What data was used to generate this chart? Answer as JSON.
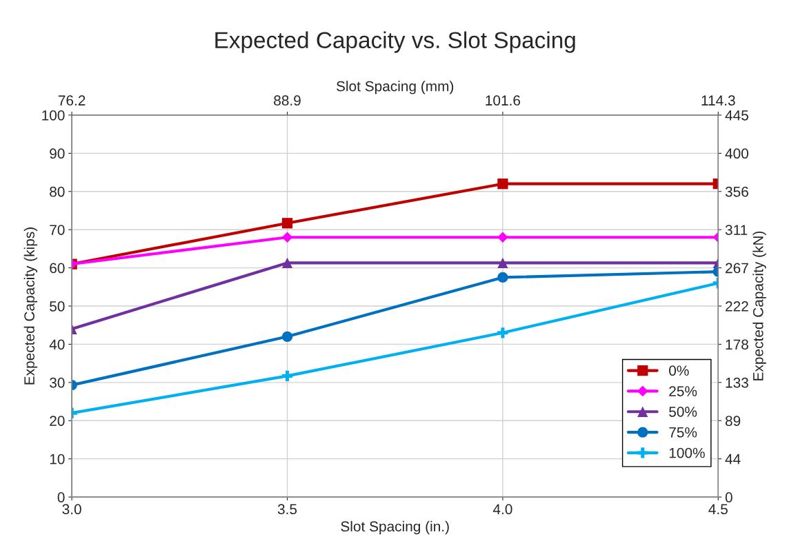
{
  "chart_data": {
    "type": "line",
    "title": "Expected Capacity vs. Slot Spacing",
    "xlabel": "Slot Spacing (in.)",
    "x2label": "Slot Spacing (mm)",
    "ylabel": "Expected Capacity (kips)",
    "y2label": "Expected Capacity (kN)",
    "x": [
      3.0,
      3.5,
      4.0,
      4.5
    ],
    "xlim": [
      3.0,
      4.5
    ],
    "xticks": [
      {
        "value": 3.0,
        "label": "3.0"
      },
      {
        "value": 3.5,
        "label": "3.5"
      },
      {
        "value": 4.0,
        "label": "4.0"
      },
      {
        "value": 4.5,
        "label": "4.5"
      }
    ],
    "x2lim": [
      76.2,
      114.3
    ],
    "x2ticks": [
      76.2,
      88.9,
      101.6,
      114.3
    ],
    "ylim": [
      0,
      100
    ],
    "yticks": [
      0,
      10,
      20,
      30,
      40,
      50,
      60,
      70,
      80,
      90,
      100
    ],
    "y2lim": [
      0,
      444.8
    ],
    "y2ticks": [
      0,
      {
        "value": 44.48,
        "label": "44"
      },
      {
        "value": 88.96,
        "label": "89"
      },
      {
        "value": 133.44,
        "label": "133"
      },
      {
        "value": 177.92,
        "label": "178"
      },
      {
        "value": 222.4,
        "label": "222"
      },
      {
        "value": 266.88,
        "label": "267"
      },
      {
        "value": 311.36,
        "label": "311"
      },
      {
        "value": 355.84,
        "label": "356"
      },
      {
        "value": 400.32,
        "label": "400"
      },
      {
        "value": 444.8,
        "label": "445"
      }
    ],
    "grid": true,
    "legend": "right",
    "line_style": "solid",
    "series": [
      {
        "name": "0%",
        "color": "#c00000",
        "marker": "square",
        "values": [
          61.0,
          71.7,
          82.0,
          82.0
        ]
      },
      {
        "name": "25%",
        "color": "#ff00ff",
        "marker": "diamond",
        "values": [
          61.0,
          68.0,
          68.0,
          68.0
        ]
      },
      {
        "name": "50%",
        "color": "#7030a0",
        "marker": "triangle",
        "values": [
          44.0,
          61.3,
          61.3,
          61.3
        ]
      },
      {
        "name": "75%",
        "color": "#0070c0",
        "marker": "circle",
        "values": [
          29.3,
          42.0,
          57.5,
          59.0
        ]
      },
      {
        "name": "100%",
        "color": "#00b0f0",
        "marker": "cross",
        "values": [
          22.0,
          31.7,
          43.0,
          56.0
        ]
      }
    ]
  }
}
